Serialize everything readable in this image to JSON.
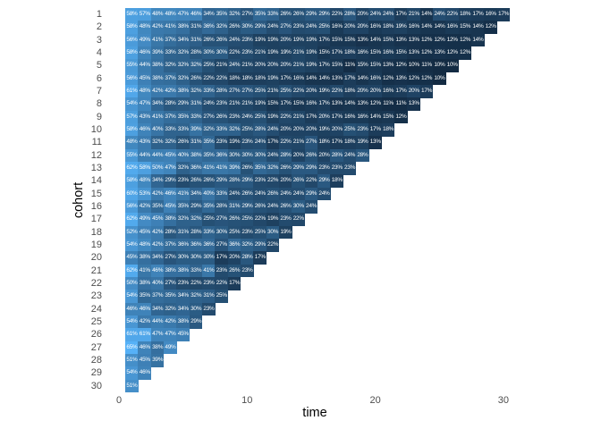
{
  "chart_data": {
    "type": "heatmap",
    "title": "",
    "xlabel": "time",
    "ylabel": "cohort",
    "x_ticks": [
      0,
      10,
      20,
      30
    ],
    "y_ticks": [
      1,
      2,
      3,
      4,
      5,
      6,
      7,
      8,
      9,
      10,
      11,
      12,
      13,
      14,
      15,
      16,
      17,
      18,
      19,
      20,
      21,
      22,
      23,
      24,
      25,
      26,
      27,
      28,
      29,
      30
    ],
    "xlim": [
      0,
      31
    ],
    "grid": false,
    "legend_position": "none",
    "cell_label_suffix": "%",
    "fill_scale": {
      "low": "#132B43",
      "high": "#56B1F7",
      "domain": [
        10,
        65
      ]
    },
    "colors": {
      "background": "#ffffff",
      "axis_text": "#4d4d4d",
      "axis_title": "#000000",
      "cell_text": "#ffffff"
    },
    "rows": [
      {
        "cohort": 1,
        "values": [
          58,
          57,
          48,
          48,
          47,
          46,
          34,
          35,
          32,
          27,
          35,
          33,
          26,
          26,
          29,
          29,
          22,
          28,
          20,
          24,
          24,
          17,
          21,
          14,
          24,
          22,
          18,
          17,
          16,
          17
        ]
      },
      {
        "cohort": 2,
        "values": [
          58,
          48,
          42,
          41,
          38,
          31,
          36,
          32,
          26,
          30,
          29,
          24,
          27,
          23,
          24,
          25,
          16,
          20,
          20,
          16,
          18,
          19,
          16,
          14,
          14,
          16,
          15,
          14,
          12
        ]
      },
      {
        "cohort": 3,
        "values": [
          56,
          49,
          41,
          37,
          34,
          31,
          26,
          26,
          24,
          23,
          19,
          19,
          20,
          19,
          19,
          17,
          15,
          15,
          13,
          14,
          15,
          13,
          13,
          12,
          12,
          12,
          12,
          14
        ]
      },
      {
        "cohort": 4,
        "values": [
          58,
          46,
          39,
          33,
          32,
          28,
          30,
          30,
          22,
          23,
          21,
          19,
          19,
          21,
          19,
          15,
          17,
          18,
          16,
          15,
          16,
          15,
          13,
          12,
          13,
          12,
          12
        ]
      },
      {
        "cohort": 5,
        "values": [
          55,
          44,
          38,
          32,
          32,
          32,
          25,
          21,
          24,
          21,
          20,
          20,
          20,
          21,
          19,
          17,
          15,
          11,
          15,
          15,
          13,
          12,
          10,
          11,
          10,
          10
        ]
      },
      {
        "cohort": 6,
        "values": [
          56,
          45,
          38,
          37,
          32,
          26,
          22,
          22,
          18,
          18,
          18,
          19,
          17,
          16,
          14,
          14,
          13,
          17,
          14,
          16,
          12,
          13,
          12,
          12,
          10
        ]
      },
      {
        "cohort": 7,
        "values": [
          61,
          48,
          42,
          42,
          38,
          32,
          33,
          28,
          27,
          27,
          25,
          21,
          25,
          22,
          20,
          19,
          22,
          18,
          20,
          20,
          16,
          17,
          20,
          17
        ]
      },
      {
        "cohort": 8,
        "values": [
          54,
          47,
          34,
          28,
          29,
          31,
          24,
          23,
          21,
          21,
          19,
          15,
          17,
          15,
          16,
          17,
          13,
          14,
          13,
          12,
          11,
          11,
          13
        ]
      },
      {
        "cohort": 9,
        "values": [
          57,
          43,
          41,
          37,
          35,
          33,
          27,
          26,
          23,
          24,
          25,
          19,
          22,
          21,
          17,
          20,
          17,
          16,
          16,
          14,
          15,
          12
        ]
      },
      {
        "cohort": 10,
        "values": [
          58,
          46,
          40,
          33,
          33,
          39,
          32,
          33,
          32,
          25,
          28,
          24,
          20,
          20,
          20,
          19,
          20,
          25,
          23,
          17,
          18
        ]
      },
      {
        "cohort": 11,
        "values": [
          48,
          43,
          32,
          32,
          26,
          31,
          35,
          23,
          19,
          23,
          24,
          17,
          22,
          21,
          27,
          18,
          17,
          18,
          19,
          13
        ]
      },
      {
        "cohort": 12,
        "values": [
          55,
          44,
          44,
          45,
          40,
          38,
          35,
          36,
          30,
          30,
          30,
          24,
          28,
          20,
          26,
          20,
          28,
          24,
          28
        ]
      },
      {
        "cohort": 13,
        "values": [
          62,
          58,
          50,
          47,
          32,
          36,
          41,
          41,
          39,
          26,
          35,
          32,
          26,
          29,
          29,
          23,
          23,
          23
        ]
      },
      {
        "cohort": 14,
        "values": [
          58,
          48,
          34,
          29,
          23,
          26,
          26,
          29,
          28,
          29,
          23,
          22,
          20,
          26,
          22,
          29,
          18
        ]
      },
      {
        "cohort": 15,
        "values": [
          60,
          53,
          42,
          46,
          41,
          34,
          40,
          33,
          24,
          26,
          24,
          26,
          24,
          24,
          29,
          24
        ]
      },
      {
        "cohort": 16,
        "values": [
          56,
          42,
          35,
          45,
          35,
          29,
          35,
          28,
          31,
          29,
          26,
          24,
          26,
          30,
          24
        ]
      },
      {
        "cohort": 17,
        "values": [
          62,
          49,
          45,
          38,
          32,
          32,
          25,
          27,
          26,
          25,
          22,
          19,
          23,
          22
        ]
      },
      {
        "cohort": 18,
        "values": [
          52,
          45,
          42,
          28,
          31,
          28,
          33,
          30,
          25,
          23,
          25,
          30,
          19
        ]
      },
      {
        "cohort": 19,
        "values": [
          54,
          48,
          42,
          37,
          36,
          36,
          36,
          27,
          36,
          32,
          29,
          22
        ]
      },
      {
        "cohort": 20,
        "values": [
          45,
          38,
          34,
          27,
          30,
          30,
          30,
          17,
          20,
          28,
          17
        ]
      },
      {
        "cohort": 21,
        "values": [
          62,
          41,
          46,
          38,
          38,
          33,
          41,
          23,
          26,
          23
        ]
      },
      {
        "cohort": 22,
        "values": [
          50,
          38,
          40,
          27,
          23,
          22,
          23,
          22,
          17
        ]
      },
      {
        "cohort": 23,
        "values": [
          54,
          35,
          37,
          35,
          34,
          32,
          31,
          25
        ]
      },
      {
        "cohort": 24,
        "values": [
          46,
          46,
          34,
          32,
          34,
          30,
          23
        ]
      },
      {
        "cohort": 25,
        "values": [
          54,
          42,
          44,
          42,
          38,
          29
        ]
      },
      {
        "cohort": 26,
        "values": [
          61,
          61,
          47,
          47,
          45
        ]
      },
      {
        "cohort": 27,
        "values": [
          65,
          46,
          38,
          49
        ]
      },
      {
        "cohort": 28,
        "values": [
          51,
          45,
          39
        ]
      },
      {
        "cohort": 29,
        "values": [
          54,
          46
        ]
      },
      {
        "cohort": 30,
        "values": [
          51
        ]
      }
    ]
  }
}
